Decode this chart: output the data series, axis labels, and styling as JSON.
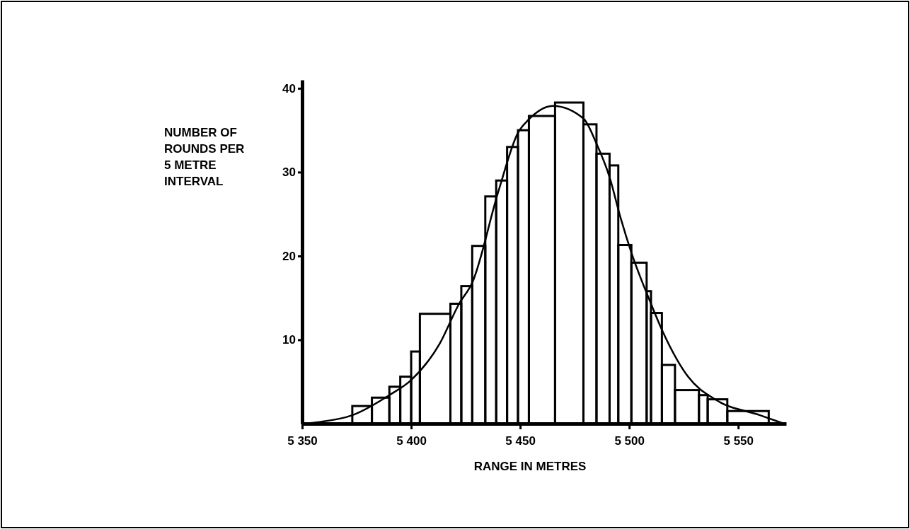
{
  "chart_data": {
    "type": "histogram",
    "xlabel": "RANGE IN METRES",
    "ylabel": "NUMBER OF\nROUNDS PER\n5 METRE\nINTERVAL",
    "xlim": [
      5350,
      5572
    ],
    "ylim": [
      0,
      41
    ],
    "xticks": [
      {
        "value": 5350,
        "label": "5 350"
      },
      {
        "value": 5400,
        "label": "5 400"
      },
      {
        "value": 5450,
        "label": "5 450"
      },
      {
        "value": 5500,
        "label": "5 500"
      },
      {
        "value": 5550,
        "label": "5 550"
      }
    ],
    "yticks": [
      10,
      20,
      30,
      40
    ],
    "grid": false,
    "series": [
      {
        "color": "#000000",
        "bins": [
          5373,
          5382,
          5390,
          5395,
          5400,
          5404,
          5418,
          5423,
          5428,
          5434,
          5439,
          5444,
          5449,
          5454,
          5466,
          5479,
          5485,
          5491,
          5495,
          5501,
          5508,
          5510,
          5515,
          5521,
          5532,
          5536,
          5545,
          5564
        ],
        "values": [
          2.1,
          3.1,
          4.4,
          5.6,
          8.6,
          13.1,
          14.3,
          16.4,
          21.2,
          27.1,
          29.0,
          33.0,
          35.0,
          36.7,
          38.3,
          35.7,
          32.2,
          30.8,
          21.3,
          19.2,
          15.8,
          13.2,
          7.0,
          4.0,
          3.4,
          2.9,
          1.5
        ]
      },
      {
        "type": "line",
        "color": "#000000",
        "x": [
          5350,
          5358,
          5373,
          5390,
          5400,
          5413,
          5422,
          5428,
          5440,
          5449,
          5454,
          5465,
          5479,
          5485,
          5491,
          5496,
          5501,
          5510,
          5515,
          5527,
          5540,
          5560,
          5571
        ],
        "values": [
          0,
          0.2,
          1.0,
          3.4,
          5.2,
          9.5,
          14.3,
          16.8,
          27.7,
          34.7,
          36.3,
          37.9,
          36.4,
          33.4,
          29.4,
          24.6,
          20.4,
          14.3,
          11.2,
          5.6,
          2.8,
          1.0,
          0
        ]
      }
    ]
  }
}
